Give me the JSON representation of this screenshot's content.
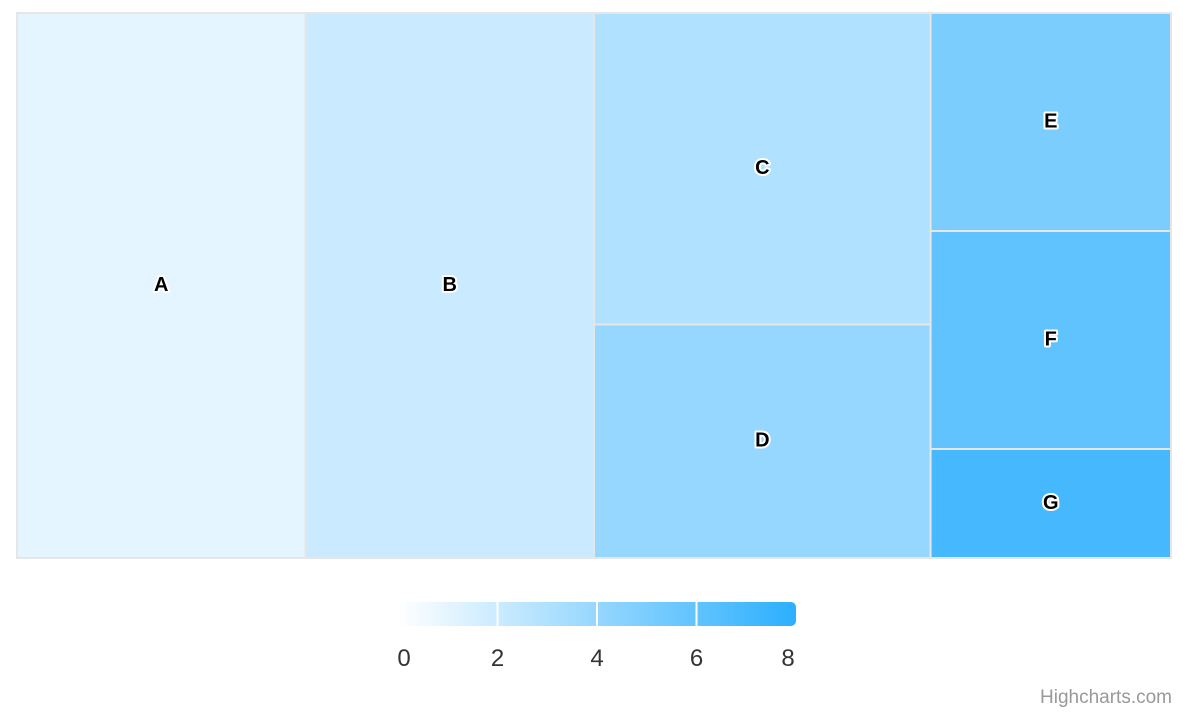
{
  "chart_data": {
    "type": "treemap",
    "points": [
      {
        "name": "A",
        "value": 6,
        "colorValue": 1
      },
      {
        "name": "B",
        "value": 6,
        "colorValue": 2
      },
      {
        "name": "C",
        "value": 4,
        "colorValue": 3
      },
      {
        "name": "D",
        "value": 3,
        "colorValue": 4
      },
      {
        "name": "E",
        "value": 2,
        "colorValue": 5
      },
      {
        "name": "F",
        "value": 2,
        "colorValue": 6
      },
      {
        "name": "G",
        "value": 1,
        "colorValue": 7
      }
    ],
    "layout_algorithm": "squarified",
    "colorAxis": {
      "min": 0,
      "max": 8,
      "tick_labels": [
        "0",
        "2",
        "4",
        "6",
        "8"
      ],
      "minColor": "#FFFFFF",
      "maxColor": "#2CAFFE"
    },
    "border_color": "#e6e6e6"
  },
  "credits": {
    "label": "Highcharts.com"
  }
}
